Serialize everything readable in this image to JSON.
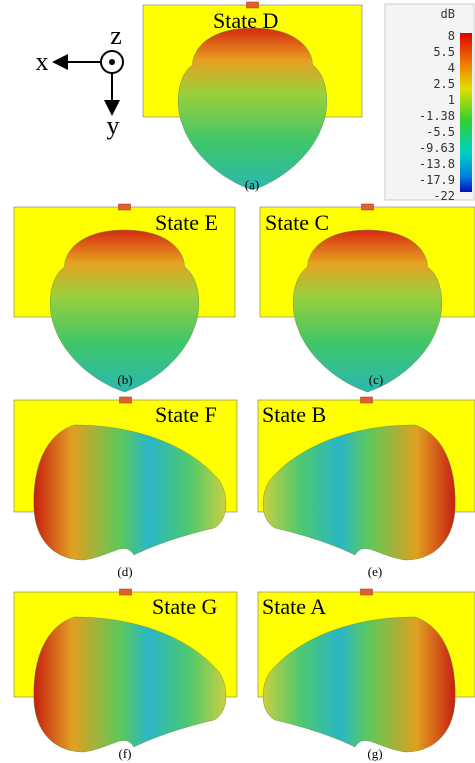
{
  "axes": {
    "x": "x",
    "y": "y",
    "z": "z"
  },
  "colorbar": {
    "unit": "dB",
    "ticks": [
      "8",
      "5.5",
      "4",
      "2.5",
      "1",
      "-1.38",
      "-5.5",
      "-9.63",
      "-13.8",
      "-17.9",
      "-22"
    ]
  },
  "panels": [
    {
      "state": "State D",
      "caption": "(a)"
    },
    {
      "state": "State E",
      "caption": "(b)"
    },
    {
      "state": "State C",
      "caption": "(c)"
    },
    {
      "state": "State F",
      "caption": "(d)"
    },
    {
      "state": "State B",
      "caption": "(e)"
    },
    {
      "state": "State G",
      "caption": "(f)"
    },
    {
      "state": "State A",
      "caption": "(g)"
    }
  ]
}
